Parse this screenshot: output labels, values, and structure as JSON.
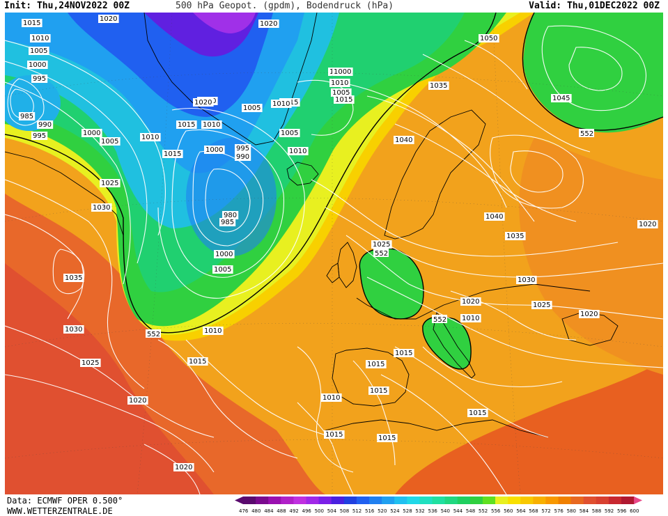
{
  "header": {
    "init": "Init: Thu,24NOV2022 00Z",
    "title": "500 hPa Geopot. (gpdm), Bodendruck (hPa)",
    "valid": "Valid: Thu,01DEC2022 00Z"
  },
  "footer": {
    "data_source": "Data: ECMWF OPER 0.500°",
    "website": "WWW.WETTERZENTRALE.DE"
  },
  "legend": {
    "levels": [
      "476",
      "480",
      "484",
      "488",
      "492",
      "496",
      "500",
      "504",
      "508",
      "512",
      "516",
      "520",
      "524",
      "528",
      "532",
      "536",
      "540",
      "544",
      "548",
      "552",
      "556",
      "560",
      "564",
      "568",
      "572",
      "576",
      "580",
      "584",
      "588",
      "592",
      "596",
      "600"
    ],
    "colors": [
      "#5a0a6e",
      "#7a0a8e",
      "#9a10b0",
      "#b020c8",
      "#c030e0",
      "#a028e8",
      "#7a20e8",
      "#4a20e0",
      "#2040e0",
      "#2060f0",
      "#2080f0",
      "#20a0f0",
      "#20c0f0",
      "#20d8e8",
      "#20e0c0",
      "#20e0a0",
      "#20d880",
      "#20d060",
      "#30d040",
      "#60e020",
      "#e8f020",
      "#f8e000",
      "#f8c800",
      "#f8b000",
      "#f89800",
      "#f08000",
      "#e86820",
      "#e05030",
      "#d84030",
      "#c82830",
      "#b01830",
      "#e84888"
    ],
    "highlight_contour": "552"
  },
  "map": {
    "pressure_labels": [
      "1015",
      "1020",
      "1010",
      "1005",
      "1000",
      "995",
      "985",
      "990",
      "995",
      "1000",
      "1005",
      "1010",
      "1015",
      "1020",
      "1015",
      "1010",
      "1020",
      "1015",
      "1010",
      "1005",
      "1000",
      "995",
      "990",
      "980",
      "985",
      "1000",
      "1005",
      "1025",
      "1030",
      "1035",
      "1030",
      "1025",
      "1020",
      "1020",
      "1015",
      "1010",
      "1015",
      "1010",
      "1005",
      "1000",
      "1005",
      "1010",
      "1015",
      "1035",
      "1050",
      "1045",
      "1040",
      "1040",
      "1035",
      "1025",
      "1020",
      "1030",
      "1025",
      "1020",
      "1020",
      "1010",
      "1015",
      "1015",
      "1015",
      "1010",
      "1015",
      "1015",
      "1015",
      "1020"
    ],
    "contour_552_labels": [
      "552",
      "552",
      "552",
      "552"
    ]
  }
}
